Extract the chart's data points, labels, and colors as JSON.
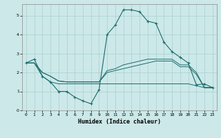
{
  "title": "",
  "xlabel": "Humidex (Indice chaleur)",
  "background_color": "#cce8e8",
  "grid_color": "#aacfcf",
  "line_color": "#1a6b6b",
  "xlim": [
    -0.5,
    23.5
  ],
  "ylim": [
    0,
    5.6
  ],
  "xticks": [
    0,
    1,
    2,
    3,
    4,
    5,
    6,
    7,
    8,
    9,
    10,
    11,
    12,
    13,
    14,
    15,
    16,
    17,
    18,
    19,
    20,
    21,
    22,
    23
  ],
  "yticks": [
    0,
    1,
    2,
    3,
    4,
    5
  ],
  "line1_x": [
    0,
    1,
    2,
    3,
    4,
    5,
    6,
    7,
    8,
    9,
    10,
    11,
    12,
    13,
    14,
    15,
    16,
    17,
    18,
    19,
    20,
    21,
    22,
    23
  ],
  "line1_y": [
    2.5,
    2.7,
    1.8,
    1.5,
    1.0,
    1.0,
    0.7,
    0.5,
    0.35,
    1.1,
    4.0,
    4.5,
    5.3,
    5.3,
    5.2,
    4.7,
    4.6,
    3.6,
    3.1,
    2.8,
    2.5,
    1.35,
    1.4,
    1.2
  ],
  "line2_x": [
    0,
    1,
    2,
    3,
    4,
    5,
    6,
    7,
    8,
    9,
    10,
    11,
    12,
    13,
    14,
    15,
    16,
    17,
    18,
    19,
    20,
    21,
    22,
    23
  ],
  "line2_y": [
    2.5,
    2.5,
    2.0,
    1.8,
    1.55,
    1.5,
    1.5,
    1.5,
    1.5,
    1.5,
    2.1,
    2.2,
    2.4,
    2.5,
    2.6,
    2.7,
    2.7,
    2.7,
    2.7,
    2.4,
    2.4,
    2.0,
    1.2,
    1.2
  ],
  "line3_x": [
    0,
    1,
    2,
    3,
    4,
    5,
    6,
    7,
    8,
    9,
    10,
    11,
    12,
    13,
    14,
    15,
    16,
    17,
    18,
    19,
    20,
    21,
    22,
    23
  ],
  "line3_y": [
    2.5,
    2.5,
    2.0,
    1.8,
    1.55,
    1.5,
    1.5,
    1.5,
    1.5,
    1.5,
    2.0,
    2.1,
    2.2,
    2.3,
    2.4,
    2.5,
    2.6,
    2.6,
    2.6,
    2.3,
    2.3,
    1.9,
    1.2,
    1.2
  ],
  "line4_x": [
    0,
    1,
    2,
    3,
    4,
    5,
    6,
    7,
    8,
    9,
    10,
    11,
    12,
    13,
    14,
    15,
    16,
    17,
    18,
    19,
    20,
    21,
    22,
    23
  ],
  "line4_y": [
    2.5,
    2.5,
    1.8,
    1.5,
    1.4,
    1.4,
    1.4,
    1.4,
    1.4,
    1.4,
    1.4,
    1.4,
    1.4,
    1.4,
    1.4,
    1.4,
    1.4,
    1.4,
    1.4,
    1.4,
    1.4,
    1.3,
    1.2,
    1.2
  ]
}
